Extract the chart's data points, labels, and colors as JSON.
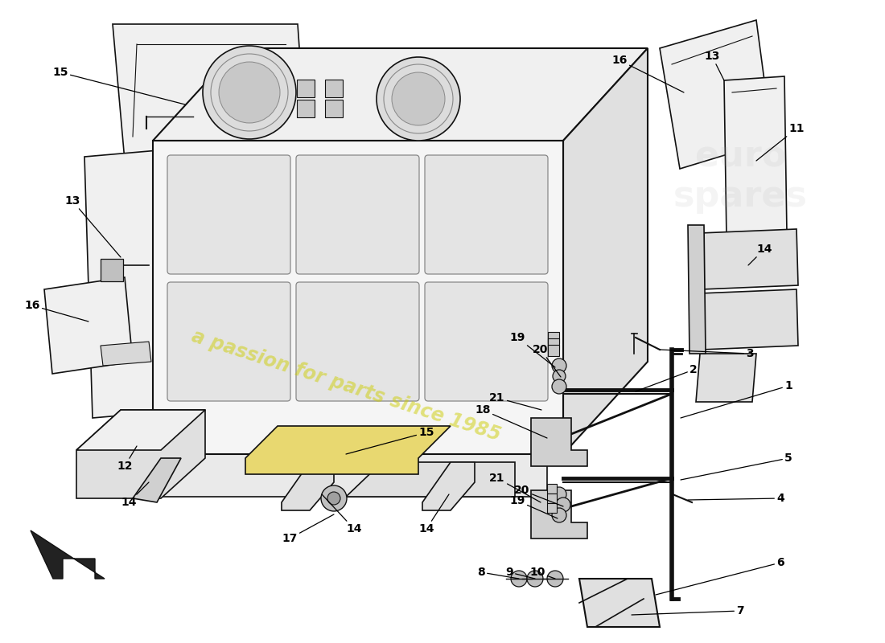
{
  "bg_color": "#ffffff",
  "watermark_text": "a passion for parts since 1985",
  "watermark_color": "#cccc00",
  "watermark_alpha": 0.5,
  "line_color": "#111111",
  "fill_light": "#f0f0f0",
  "fill_mid": "#e0e0e0",
  "fill_dark": "#d0d0d0",
  "fill_darker": "#b8b8b8",
  "fill_yellow": "#e8d870"
}
